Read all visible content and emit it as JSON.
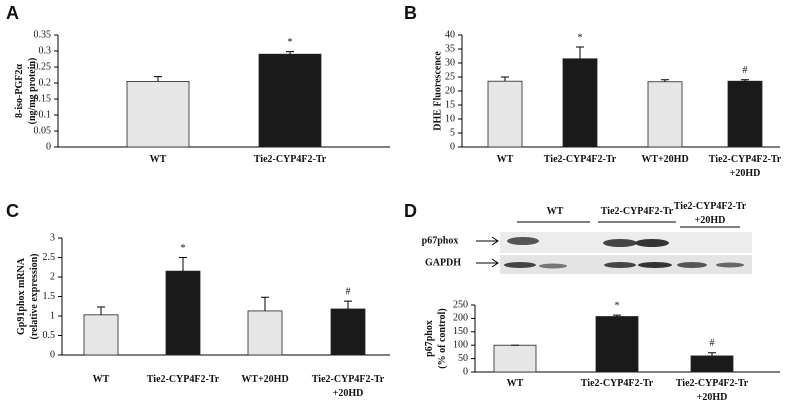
{
  "chart_data": [
    {
      "type": "bar",
      "panel_label": "A",
      "y_label": [
        "8-iso-PGF2α",
        "(ng/mg protein)"
      ],
      "categories": [
        "WT",
        "Tie2-CYP4F2-Tr"
      ],
      "values": [
        0.205,
        0.29
      ],
      "errors": [
        0.015,
        0.008
      ],
      "value_annotations": [
        null,
        "*"
      ],
      "colors": [
        "#e6e6e6",
        "#1a1a1a"
      ],
      "ylim": [
        0,
        0.35
      ],
      "yticks": [
        0,
        0.05,
        0.1,
        0.15,
        0.2,
        0.25,
        0.3,
        0.35
      ]
    },
    {
      "type": "bar",
      "panel_label": "B",
      "y_label": [
        "DHE Fluorescence"
      ],
      "categories": [
        "WT",
        "Tie2-CYP4F2-Tr",
        "WT+20HD",
        "Tie2-CYP4F2-Tr +20HD"
      ],
      "values": [
        23.5,
        31.5,
        23.3,
        23.5
      ],
      "errors": [
        1.5,
        4.2,
        0.7,
        0.5
      ],
      "value_annotations": [
        null,
        "*",
        null,
        "#"
      ],
      "colors": [
        "#e6e6e6",
        "#1a1a1a",
        "#e6e6e6",
        "#1a1a1a"
      ],
      "ylim": [
        0,
        40
      ],
      "yticks": [
        0,
        5,
        10,
        15,
        20,
        25,
        30,
        35,
        40
      ]
    },
    {
      "type": "bar",
      "panel_label": "C",
      "y_label": [
        "Gp91phox mRNA",
        "(relative expression)"
      ],
      "categories": [
        "WT",
        "Tie2-CYP4F2-Tr",
        "WT+20HD",
        "Tie2-CYP4F2-Tr +20HD"
      ],
      "values": [
        1.03,
        2.15,
        1.13,
        1.18
      ],
      "errors": [
        0.2,
        0.35,
        0.35,
        0.2
      ],
      "value_annotations": [
        null,
        "*",
        null,
        "#"
      ],
      "colors": [
        "#e6e6e6",
        "#1a1a1a",
        "#e6e6e6",
        "#1a1a1a"
      ],
      "ylim": [
        0,
        3
      ],
      "yticks": [
        0,
        0.5,
        1,
        1.5,
        2,
        2.5,
        3
      ]
    },
    {
      "type": "bar",
      "panel_label": "D",
      "y_label": [
        "p67phox",
        "(% of control)"
      ],
      "blot": {
        "lanes": [
          "WT",
          "Tie2-CYP4F2-Tr",
          "Tie2-CYP4F2-Tr +20HD"
        ],
        "rows": [
          "p67phox",
          "GAPDH"
        ]
      },
      "categories": [
        "WT",
        "Tie2-CYP4F2-Tr",
        "Tie2-CYP4F2-Tr +20HD"
      ],
      "values": [
        100,
        207,
        60
      ],
      "errors": [
        0,
        5,
        12
      ],
      "value_annotations": [
        null,
        "*",
        "#"
      ],
      "colors": [
        "#e6e6e6",
        "#1a1a1a",
        "#1a1a1a"
      ],
      "ylim": [
        0,
        250
      ],
      "yticks": [
        0,
        50,
        100,
        150,
        200,
        250
      ]
    }
  ]
}
